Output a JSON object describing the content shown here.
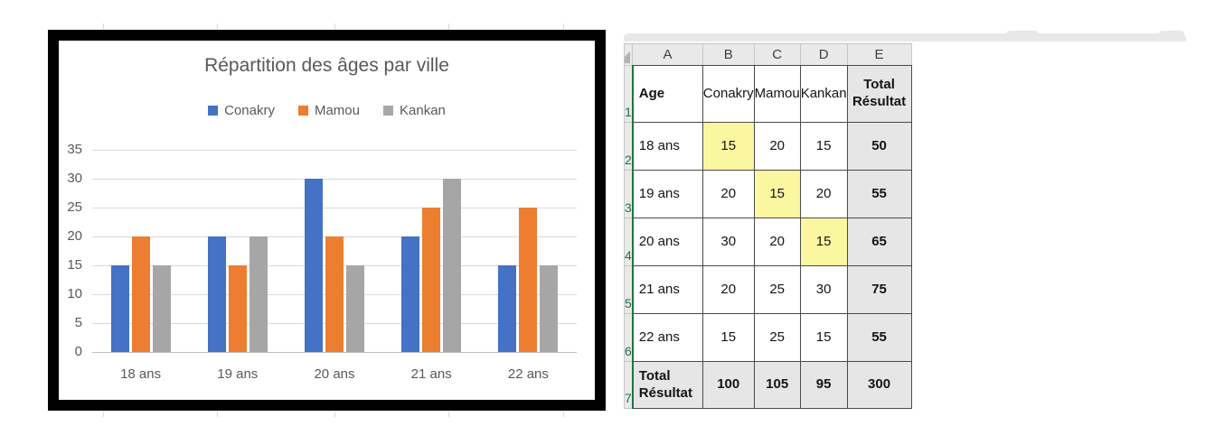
{
  "chart_data": {
    "type": "bar",
    "title": "Répartition des âges par ville",
    "categories": [
      "18 ans",
      "19 ans",
      "20 ans",
      "21 ans",
      "22 ans"
    ],
    "series": [
      {
        "name": "Conakry",
        "color": "#4472C4",
        "values": [
          15,
          20,
          30,
          20,
          15
        ]
      },
      {
        "name": "Mamou",
        "color": "#ED7D31",
        "values": [
          20,
          15,
          20,
          25,
          25
        ]
      },
      {
        "name": "Kankan",
        "color": "#A6A6A6",
        "values": [
          15,
          20,
          15,
          30,
          15
        ]
      }
    ],
    "ylim": [
      0,
      35
    ],
    "yticks": [
      35,
      30,
      25,
      20,
      15,
      10,
      5,
      0
    ],
    "grid": "horizontal",
    "legend_position": "top",
    "xlabel": "",
    "ylabel": ""
  },
  "sheet": {
    "col_headers": [
      "A",
      "B",
      "C",
      "D",
      "E"
    ],
    "rows": [
      {
        "num": "1",
        "cells": [
          "Age",
          "Conakry",
          "Mamou",
          "Kankan",
          "Total Résultat"
        ]
      },
      {
        "num": "2",
        "cells": [
          "18 ans",
          "15",
          "20",
          "15",
          "50"
        ]
      },
      {
        "num": "3",
        "cells": [
          "19 ans",
          "20",
          "15",
          "20",
          "55"
        ]
      },
      {
        "num": "4",
        "cells": [
          "20 ans",
          "30",
          "20",
          "15",
          "65"
        ]
      },
      {
        "num": "5",
        "cells": [
          "21 ans",
          "20",
          "25",
          "30",
          "75"
        ]
      },
      {
        "num": "6",
        "cells": [
          "22 ans",
          "15",
          "25",
          "15",
          "55"
        ]
      },
      {
        "num": "7",
        "cells": [
          "Total Résultat",
          "100",
          "105",
          "95",
          "300"
        ]
      }
    ],
    "highlighted_cells": [
      "B2",
      "C3",
      "D4"
    ],
    "colors": {
      "highlight_yellow": "#FAF7A0",
      "total_gray": "#E7E6E6",
      "header_gray": "#E8E8E8",
      "row_number_green": "#217346",
      "bar_blue": "#4472C4",
      "bar_orange": "#ED7D31",
      "bar_gray": "#A6A6A6"
    }
  }
}
